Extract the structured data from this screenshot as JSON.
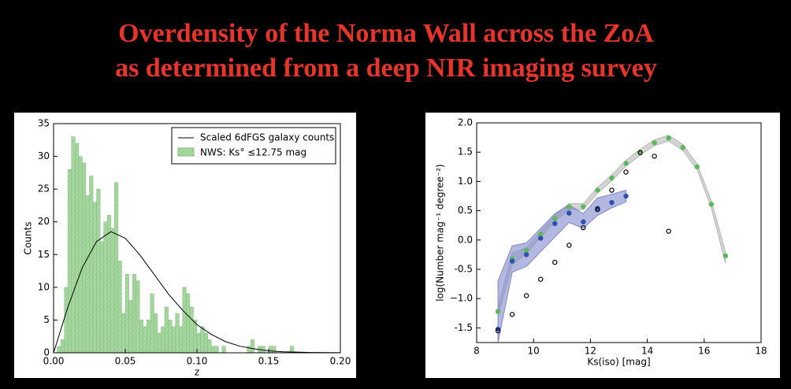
{
  "title": [
    "Overdensity of the Norma Wall across the ZoA",
    "as determined from a deep NIR imaging survey"
  ],
  "chart_data": [
    {
      "type": "histogram",
      "xlabel": "z",
      "ylabel": "Counts",
      "bins": [
        0.0025,
        0.005,
        0.0075,
        0.01,
        0.0125,
        0.015,
        0.0175,
        0.02,
        0.0225,
        0.025,
        0.0275,
        0.03,
        0.0325,
        0.035,
        0.0375,
        0.04,
        0.0425,
        0.045,
        0.0475,
        0.05,
        0.0525,
        0.055,
        0.0575,
        0.06,
        0.0625,
        0.065,
        0.0675,
        0.07,
        0.0725,
        0.075,
        0.0775,
        0.08,
        0.0825,
        0.085,
        0.0875,
        0.09,
        0.0925,
        0.095,
        0.0975,
        0.1,
        0.1025,
        0.105,
        0.1075,
        0.11,
        0.1125,
        0.115,
        0.1175,
        0.12,
        0.1225,
        0.125,
        0.1275,
        0.13,
        0.1325,
        0.135,
        0.1375,
        0.14,
        0.1425,
        0.145,
        0.1475,
        0.15,
        0.1525,
        0.155,
        0.1575,
        0.16,
        0.1625,
        0.165,
        0.1675,
        0.17
      ],
      "counts": [
        1,
        2,
        10,
        28,
        33,
        32,
        30,
        29,
        24,
        27,
        23,
        25,
        17,
        20,
        21,
        19,
        26,
        14,
        6,
        12,
        8,
        12,
        11,
        5,
        4,
        5,
        9,
        6,
        3,
        4,
        7,
        5,
        4,
        6,
        4,
        10,
        9,
        7,
        5,
        3,
        4,
        3,
        2,
        1,
        1,
        0,
        1,
        0,
        0,
        0,
        0,
        0,
        0,
        1,
        2,
        0,
        1,
        1,
        0,
        1,
        1,
        0,
        0,
        0,
        0,
        1,
        0
      ],
      "name": "NWS: Ks° ≤12.75 mag",
      "color": "#a8d8a0",
      "line": {
        "name": "Scaled 6dFGS galaxy counts",
        "color": "#000000",
        "x": [
          0,
          0.01,
          0.02,
          0.03,
          0.04,
          0.05,
          0.06,
          0.07,
          0.08,
          0.09,
          0.1,
          0.11,
          0.12,
          0.13,
          0.14,
          0.15,
          0.16,
          0.18,
          0.2
        ],
        "values": [
          0,
          7,
          13,
          17,
          18.5,
          17.5,
          15,
          12,
          9,
          6.5,
          4.3,
          2.8,
          1.7,
          1.0,
          0.6,
          0.3,
          0.15,
          0.05,
          0.01
        ]
      },
      "xlim": [
        0,
        0.2
      ],
      "xticks": [
        {
          "value": 0,
          "label": "0.00"
        },
        0.05,
        {
          "value": 0.1,
          "label": "0.10"
        },
        0.15,
        {
          "value": 0.2,
          "label": "0.20"
        }
      ],
      "ylim": [
        0,
        35
      ],
      "yticks": [
        0,
        5,
        10,
        15,
        20,
        25,
        30,
        35
      ],
      "legend": "upper right"
    },
    {
      "type": "scatter",
      "xlabel": "Ks(iso) [mag]",
      "ylabel": "log(Number mag⁻¹ degree⁻²)",
      "bands": [
        {
          "color": "#b8b8b8",
          "x": [
            8.75,
            9.25,
            9.75,
            10.25,
            10.75,
            11.25,
            11.75,
            12.25,
            12.75,
            13.25,
            13.75,
            14.25,
            14.75,
            15.25,
            15.75,
            16.25,
            16.75
          ],
          "lower": [
            -1.3,
            -0.42,
            -0.23,
            0.05,
            0.32,
            0.52,
            0.52,
            0.8,
            1.01,
            1.26,
            1.45,
            1.61,
            1.69,
            1.53,
            1.2,
            0.55,
            -0.4
          ],
          "upper": [
            -1.15,
            -0.22,
            -0.13,
            0.15,
            0.42,
            0.62,
            0.62,
            0.9,
            1.11,
            1.36,
            1.55,
            1.71,
            1.79,
            1.63,
            1.3,
            0.67,
            -0.2
          ]
        },
        {
          "color": "#8088cc",
          "x": [
            8.75,
            9.25,
            9.75,
            10.25,
            10.75,
            11.25,
            11.75,
            12.25,
            12.75,
            13.25
          ],
          "lower": [
            -1.75,
            -0.55,
            -0.45,
            -0.2,
            0.05,
            0.3,
            0.2,
            0.42,
            0.55,
            0.65
          ],
          "upper": [
            -0.7,
            -0.1,
            -0.05,
            0.2,
            0.45,
            0.6,
            0.45,
            0.72,
            0.78,
            0.85
          ]
        }
      ],
      "series": [
        {
          "color": "#5bb85b",
          "marker": "filled",
          "x": [
            8.75,
            9.25,
            9.75,
            10.25,
            10.75,
            11.25,
            11.75,
            12.25,
            12.75,
            13.25,
            13.75,
            14.25,
            14.75,
            15.25,
            15.75,
            16.25,
            16.75
          ],
          "values": [
            -1.22,
            -0.32,
            -0.18,
            0.1,
            0.37,
            0.57,
            0.57,
            0.85,
            1.06,
            1.31,
            1.5,
            1.66,
            1.74,
            1.58,
            1.25,
            0.61,
            -0.27
          ]
        },
        {
          "color": "#3050b0",
          "marker": "filled",
          "x": [
            8.75,
            9.25,
            9.75,
            10.25,
            10.75,
            11.25,
            11.75,
            12.25,
            12.75,
            13.25
          ],
          "values": [
            -1.52,
            -0.36,
            -0.25,
            0.03,
            0.28,
            0.46,
            0.31,
            0.54,
            0.64,
            0.75
          ]
        },
        {
          "color": "#000000",
          "marker": "open",
          "x": [
            8.75,
            9.25,
            9.75,
            10.25,
            10.75,
            11.25,
            11.75,
            12.25,
            12.75,
            13.25,
            13.75,
            14.25,
            14.75
          ],
          "values": [
            -1.55,
            -1.27,
            -0.95,
            -0.67,
            -0.38,
            -0.09,
            0.21,
            0.52,
            0.85,
            1.16,
            1.49,
            1.43,
            0.15
          ]
        }
      ],
      "xlim": [
        8,
        18
      ],
      "xticks": [
        8,
        10,
        12,
        14,
        16,
        18
      ],
      "ylim": [
        -1.75,
        2.0
      ],
      "yticks": [
        -1.5,
        {
          "value": -1,
          "label": "−1.0"
        },
        -0.5,
        {
          "value": 0,
          "label": "0.0"
        },
        0.5,
        {
          "value": 1,
          "label": "1.0"
        },
        1.5,
        {
          "value": 2,
          "label": "2.0"
        }
      ]
    }
  ]
}
